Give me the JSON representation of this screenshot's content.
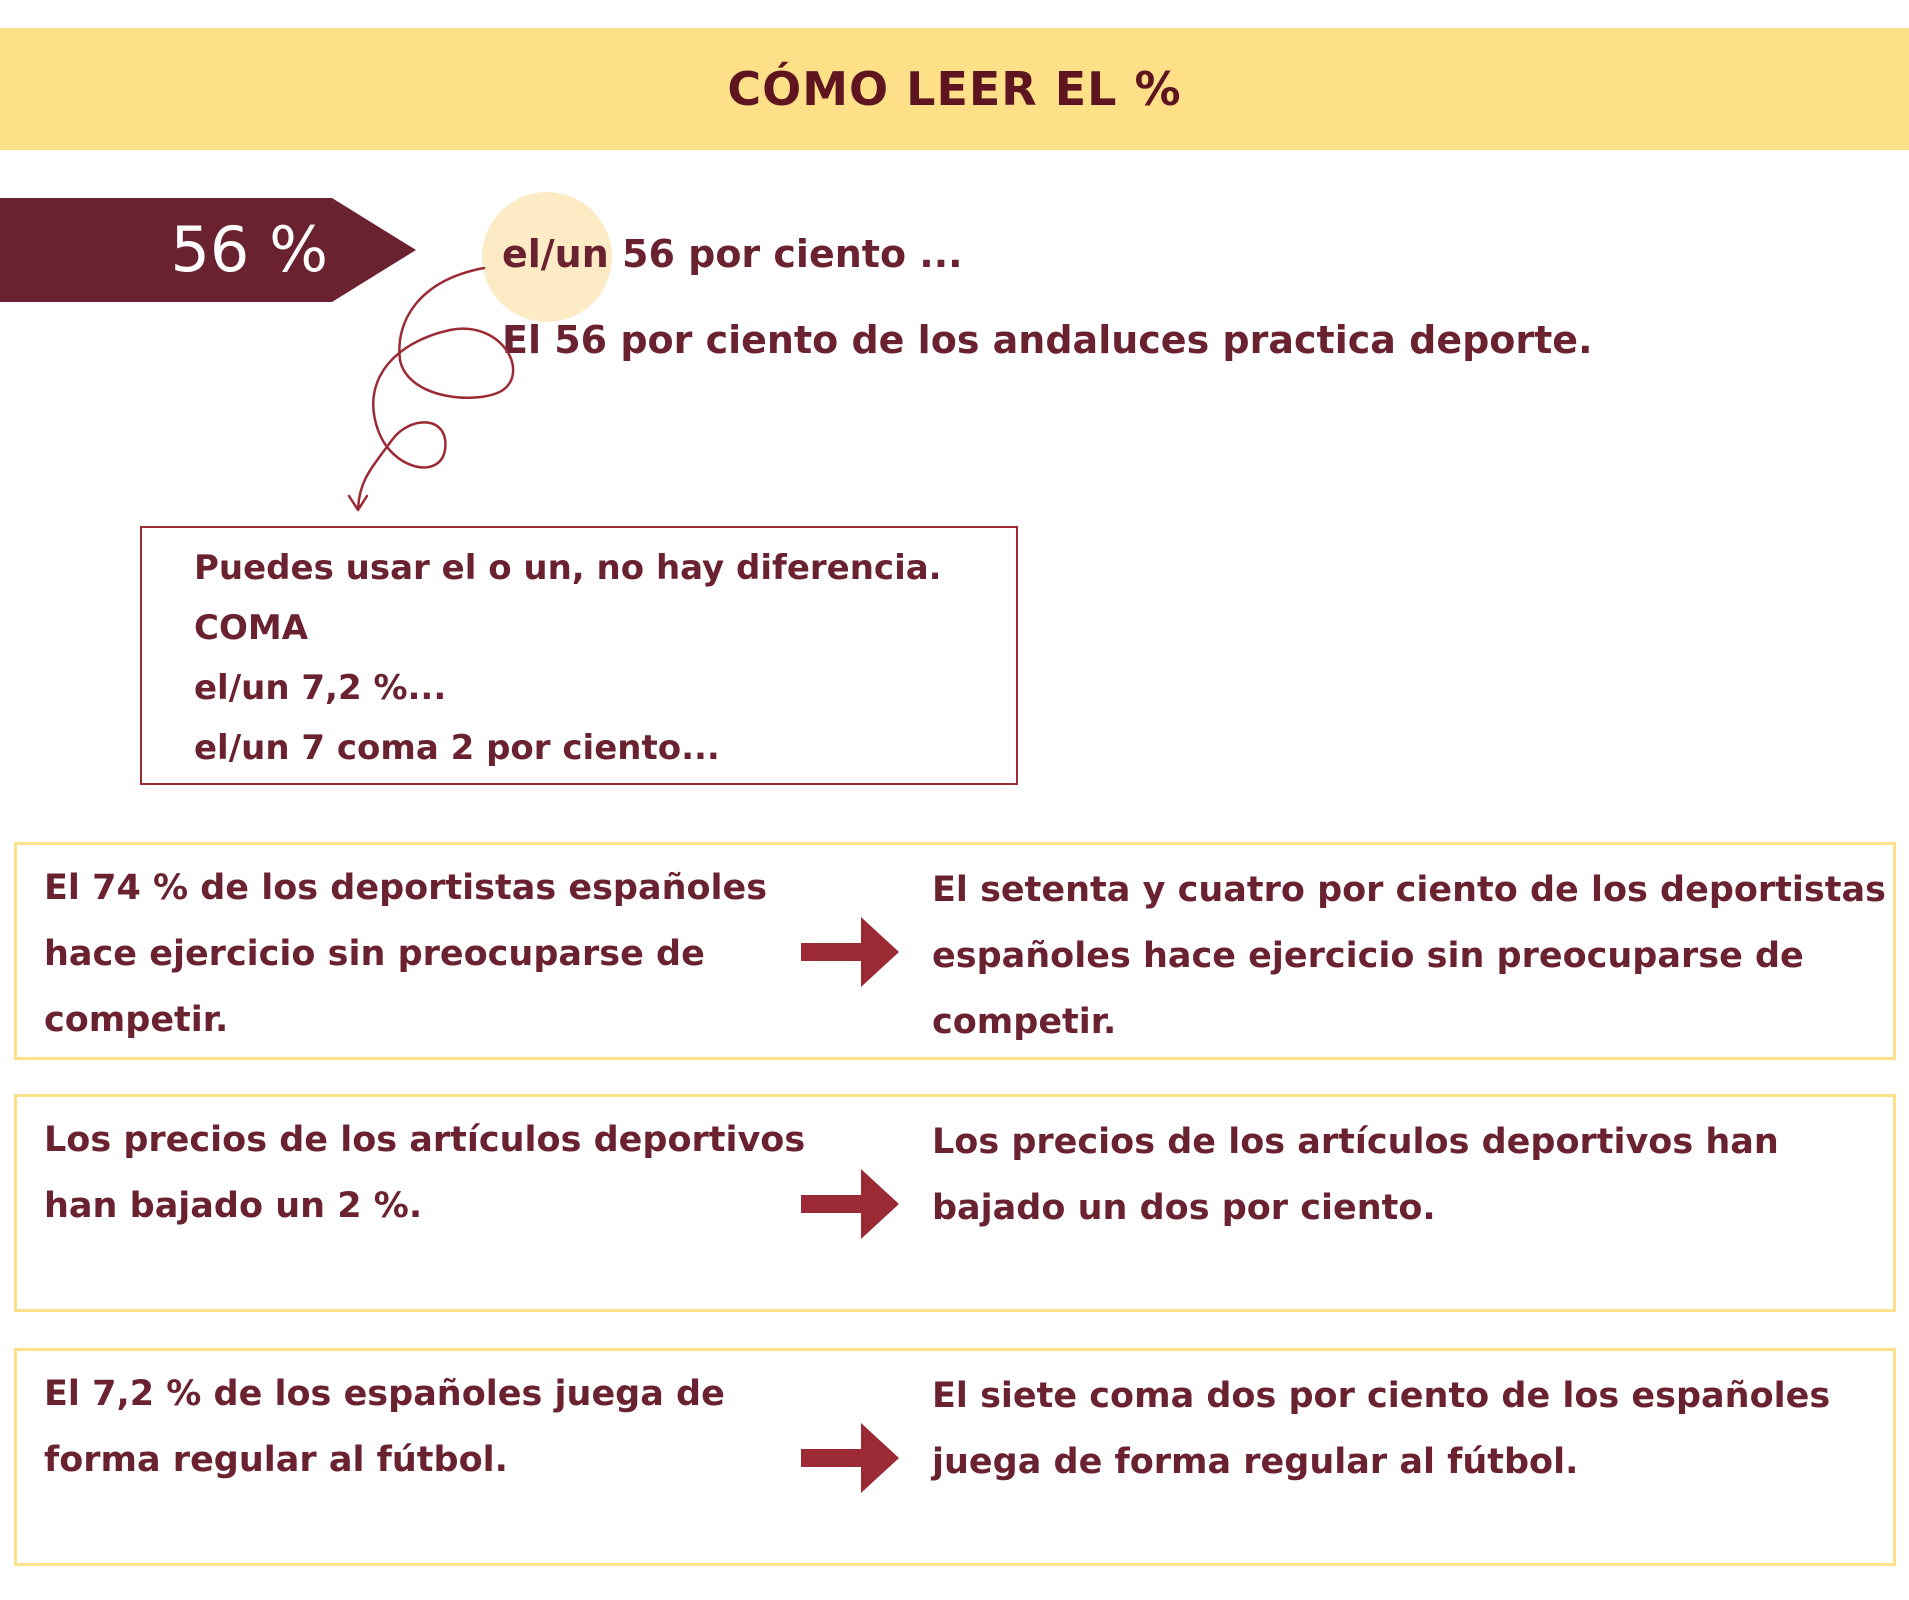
{
  "header": {
    "title": "CÓMO LEER EL %"
  },
  "example": {
    "percent": "56 %",
    "reading": "el/un 56 por ciento ...",
    "sentence": "El 56 por ciento de los andaluces practica deporte."
  },
  "note": {
    "lines": [
      "Puedes usar el o un, no hay diferencia.",
      "COMA",
      "el/un 7,2 %...",
      "el/un 7 coma 2 por ciento..."
    ]
  },
  "examples": [
    {
      "written": "El 74 % de los deportistas españoles hace ejercicio sin preocuparse de competir.",
      "spoken": "El setenta y cuatro por ciento de los deportistas españoles hace ejercicio sin preocuparse de competir."
    },
    {
      "written": "Los precios de los artículos deportivos han bajado un 2 %.",
      "spoken": "Los precios de los artículos deportivos han bajado un dos por ciento."
    },
    {
      "written": "El 7,2 % de los españoles juega de forma regular al fútbol.",
      "spoken": "El siete coma dos por ciento de los españoles juega de forma regular al fútbol."
    }
  ],
  "colors": {
    "accent": "#6b2230",
    "title_bg": "#fee088",
    "highlight": "#fcebc4",
    "box_border": "#fde08a",
    "arrow": "#9b2a35"
  }
}
